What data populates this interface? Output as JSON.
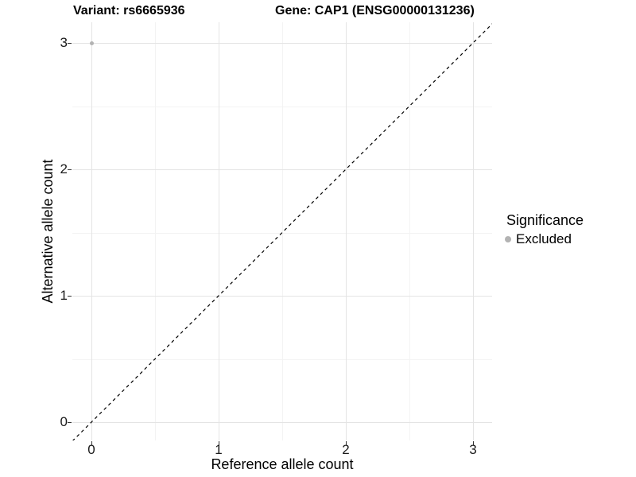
{
  "titles": {
    "variant": "Variant: rs6665936",
    "gene": "Gene: CAP1 (ENSG00000131236)"
  },
  "axes": {
    "x": {
      "label": "Reference allele count",
      "tick_labels": [
        "0",
        "1",
        "2",
        "3"
      ]
    },
    "y": {
      "label": "Alternative allele count",
      "tick_labels": [
        "0",
        "1",
        "2",
        "3"
      ]
    }
  },
  "legend": {
    "title": "Significance",
    "items": [
      {
        "label": "Excluded",
        "color": "#b3b3b3",
        "marker": "circle"
      }
    ]
  },
  "colors": {
    "background": "#ffffff",
    "axis": "#333333",
    "grid_major": "#e4e4e4",
    "grid_minor": "#f3f3f3",
    "tick_text": "#1a1a1a",
    "point": "#b3b3b3",
    "reference_line": "#000000"
  },
  "chart_data": {
    "type": "scatter",
    "title": "Variant: rs6665936 | Gene: CAP1 (ENSG00000131236)",
    "xlabel": "Reference allele count",
    "ylabel": "Alternative allele count",
    "xlim": [
      -0.15,
      3.15
    ],
    "ylim": [
      -0.15,
      3.15
    ],
    "x_ticks": [
      0,
      1,
      2,
      3
    ],
    "y_ticks": [
      0,
      1,
      2,
      3
    ],
    "minor_ticks": [
      0.5,
      1.5,
      2.5
    ],
    "grid": true,
    "legend_position": "right",
    "series": [
      {
        "name": "Excluded",
        "color": "#b3b3b3",
        "marker_size_px": 5,
        "points": [
          [
            0,
            3
          ]
        ]
      }
    ],
    "reference_line": {
      "kind": "identity",
      "slope": 1,
      "intercept": 0,
      "style": "dashed",
      "color": "#000000"
    }
  }
}
